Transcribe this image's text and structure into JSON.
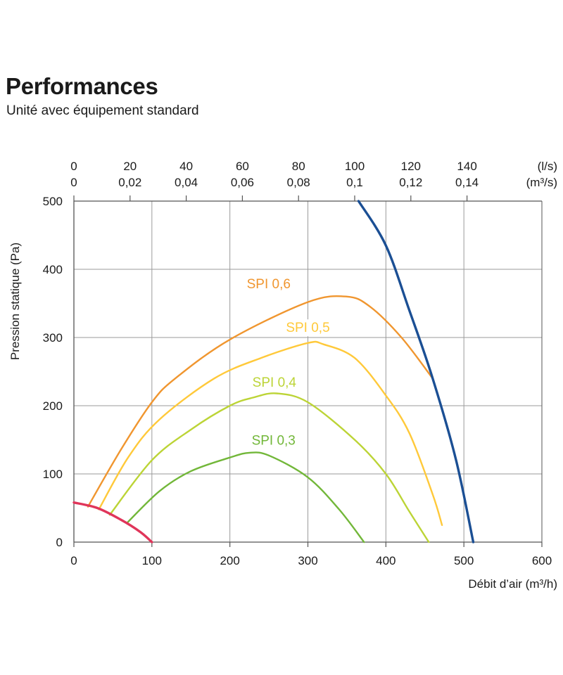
{
  "header": {
    "title": "Performances",
    "subtitle": "Unité avec équipement standard"
  },
  "chart_data": {
    "type": "line",
    "title": "Performances",
    "subtitle": "Unité avec équipement standard",
    "xlabel": "Débit d’air (m³/h)",
    "ylabel": "Pression statique  (Pa)",
    "xlim": [
      0,
      600
    ],
    "ylim": [
      0,
      500
    ],
    "x_ticks": [
      "0",
      "100",
      "200",
      "300",
      "400",
      "500",
      "600"
    ],
    "y_ticks": [
      "0",
      "100",
      "200",
      "300",
      "400",
      "500"
    ],
    "grid": true,
    "top_axis": {
      "row1": {
        "unit": "(l/s)",
        "ticks": [
          "0",
          "20",
          "40",
          "60",
          "80",
          "100",
          "120",
          "140"
        ],
        "values": [
          0,
          20,
          40,
          60,
          80,
          100,
          120,
          140
        ]
      },
      "row2": {
        "unit": "(m³/s)",
        "ticks": [
          "0",
          "0,02",
          "0,04",
          "0,06",
          "0,08",
          "0,1",
          "0,12",
          "0,14"
        ],
        "values": [
          0,
          0.02,
          0.04,
          0.06,
          0.08,
          0.1,
          0.12,
          0.14
        ]
      },
      "m3h_per_ls": 3.6
    },
    "series": [
      {
        "name": "SPI 0,6",
        "color": "#f0962f",
        "points": [
          [
            18,
            52
          ],
          [
            60,
            135
          ],
          [
            100,
            205
          ],
          [
            130,
            240
          ],
          [
            200,
            297
          ],
          [
            300,
            352
          ],
          [
            350,
            360
          ],
          [
            380,
            345
          ],
          [
            420,
            300
          ],
          [
            460,
            240
          ]
        ]
      },
      {
        "name": "SPI 0,5",
        "color": "#ffc93a",
        "points": [
          [
            32,
            48
          ],
          [
            70,
            125
          ],
          [
            110,
            180
          ],
          [
            180,
            240
          ],
          [
            240,
            270
          ],
          [
            300,
            292
          ],
          [
            320,
            290
          ],
          [
            360,
            270
          ],
          [
            400,
            215
          ],
          [
            430,
            160
          ],
          [
            460,
            70
          ],
          [
            472,
            25
          ]
        ]
      },
      {
        "name": "SPI 0,4",
        "color": "#bcd436",
        "points": [
          [
            46,
            40
          ],
          [
            100,
            120
          ],
          [
            150,
            165
          ],
          [
            200,
            200
          ],
          [
            230,
            212
          ],
          [
            260,
            218
          ],
          [
            300,
            205
          ],
          [
            360,
            150
          ],
          [
            400,
            100
          ],
          [
            430,
            45
          ],
          [
            455,
            0
          ]
        ]
      },
      {
        "name": "SPI 0,3",
        "color": "#72b739",
        "points": [
          [
            68,
            28
          ],
          [
            110,
            75
          ],
          [
            150,
            104
          ],
          [
            200,
            124
          ],
          [
            225,
            131
          ],
          [
            250,
            127
          ],
          [
            300,
            95
          ],
          [
            340,
            48
          ],
          [
            372,
            0
          ]
        ]
      },
      {
        "name": "",
        "color": "#1b4f94",
        "points": [
          [
            365,
            500
          ],
          [
            400,
            435
          ],
          [
            430,
            340
          ],
          [
            460,
            240
          ],
          [
            490,
            120
          ],
          [
            512,
            0
          ]
        ]
      },
      {
        "name": "",
        "color": "#e0355a",
        "points": [
          [
            0,
            58
          ],
          [
            30,
            50
          ],
          [
            60,
            33
          ],
          [
            85,
            15
          ],
          [
            100,
            0
          ]
        ]
      }
    ],
    "labels": [
      {
        "text": "SPI 0,6",
        "series": 0
      },
      {
        "text": "SPI 0,5",
        "series": 1
      },
      {
        "text": "SPI 0,4",
        "series": 2
      },
      {
        "text": "SPI 0,3",
        "series": 3
      }
    ]
  }
}
